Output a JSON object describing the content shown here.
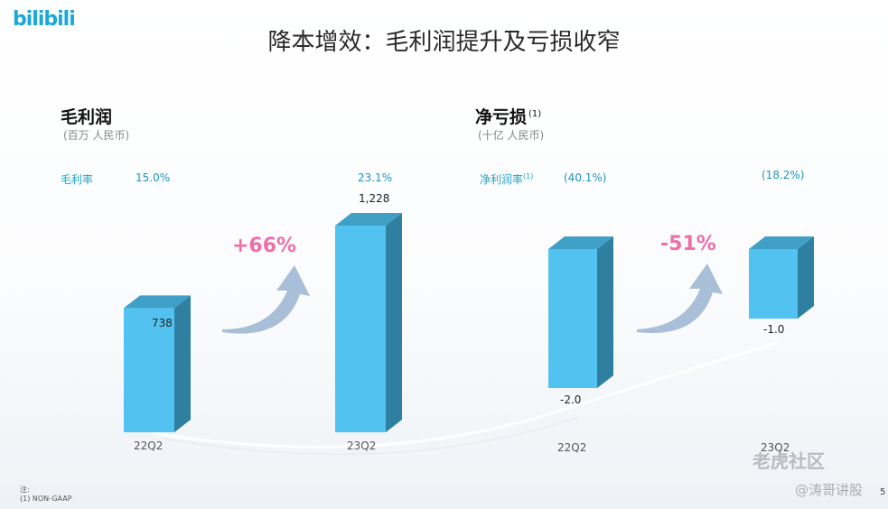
{
  "logo": "bilibili",
  "title": "降本增效：毛利润提升及亏损收窄",
  "chart_data": [
    {
      "type": "bar",
      "title": "毛利润",
      "unit": "(百万 人民币)",
      "categories": [
        "22Q2",
        "23Q2"
      ],
      "values": [
        738,
        1228
      ],
      "value_labels": [
        "738",
        "1,228"
      ],
      "rate_label": "毛利率",
      "rate_values": [
        "15.0%",
        "23.1%"
      ],
      "change_label": "+66%",
      "ylim": [
        0,
        1400
      ]
    },
    {
      "type": "bar",
      "title": "净亏损",
      "title_note": "(1)",
      "unit": "(十亿 人民币)",
      "categories": [
        "22Q2",
        "23Q2"
      ],
      "values": [
        -2.0,
        -1.0
      ],
      "value_labels": [
        "-2.0",
        "-1.0"
      ],
      "rate_label": "净利润率",
      "rate_note": "(1)",
      "rate_values": [
        "(40.1%)",
        "(18.2%)"
      ],
      "change_label": "-51%",
      "ylim": [
        -2.5,
        0
      ]
    }
  ],
  "footnote": {
    "line1": "注:",
    "line2": "(1)    NON-GAAP"
  },
  "watermark": {
    "main": "老虎社区",
    "sub": "@涛哥讲股"
  },
  "page_number": "5",
  "colors": {
    "bar_front": "#52c3f1",
    "bar_side": "#2f7fa0",
    "bar_top": "#3f9fc4",
    "arrow": "#a9bfd8",
    "accent": "#ee6fa7"
  }
}
